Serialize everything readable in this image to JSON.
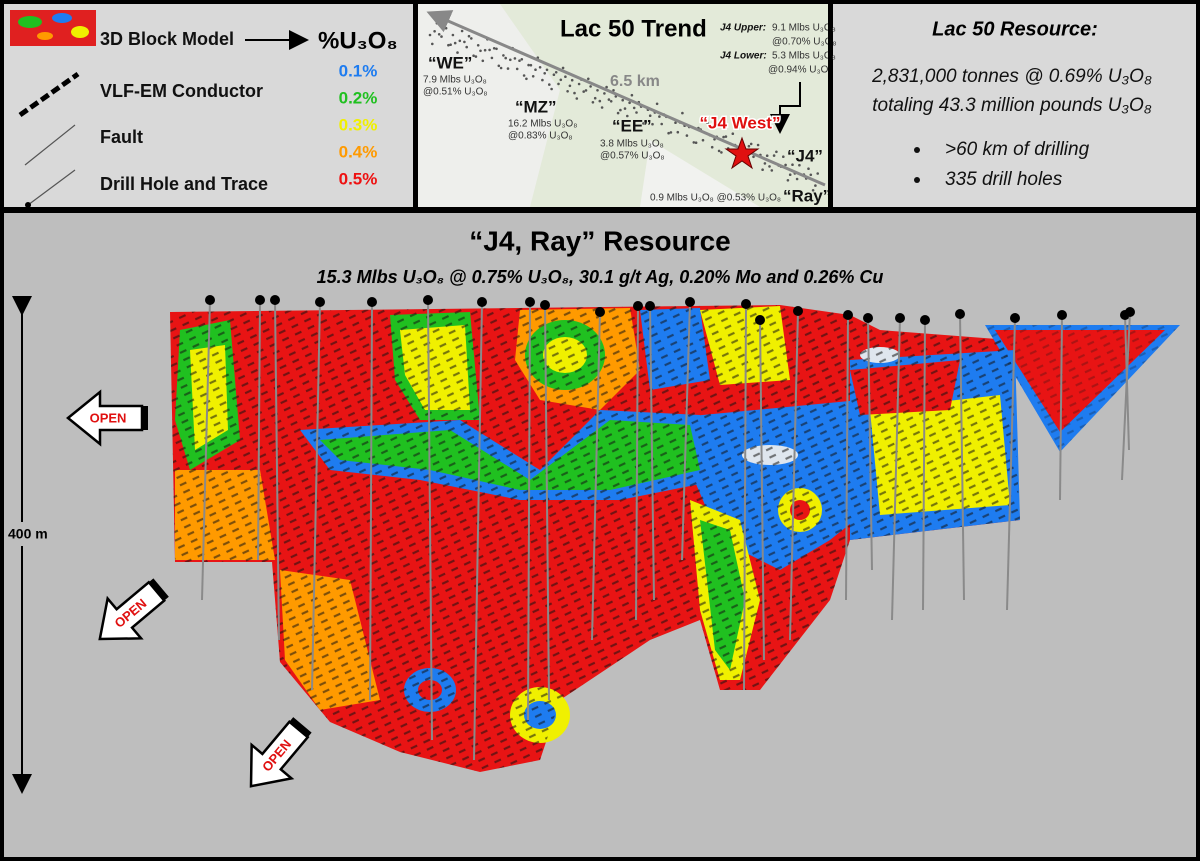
{
  "legend": {
    "block_model": "3D Block Model",
    "grade_header": "%U₃O₈",
    "conductor": "VLF-EM Conductor",
    "fault": "Fault",
    "drill_hole": "Drill Hole and Trace",
    "grades": [
      {
        "label": "0.1%",
        "color": "#1e7cf0"
      },
      {
        "label": "0.2%",
        "color": "#20c020"
      },
      {
        "label": "0.3%",
        "color": "#f0f000"
      },
      {
        "label": "0.4%",
        "color": "#ff9a00"
      },
      {
        "label": "0.5%",
        "color": "#ee1111"
      }
    ]
  },
  "map": {
    "title": "Lac 50 Trend",
    "distance": "6.5 km",
    "we": {
      "name": "“WE”",
      "tonnage": "7.9 Mlbs U₃O₈",
      "grade": "@0.51% U₃O₈"
    },
    "mz": {
      "name": "“MZ”",
      "tonnage": "16.2 Mlbs U₃O₈",
      "grade": "@0.83% U₃O₈"
    },
    "ee": {
      "name": "“EE”",
      "tonnage": "3.8 Mlbs U₃O₈",
      "grade": "@0.57% U₃O₈"
    },
    "j4_upper": {
      "label": "J4 Upper:",
      "tonnage": "9.1 Mlbs U₃O₈",
      "grade": "@0.70% U₃O₈"
    },
    "j4_lower": {
      "label": "J4 Lower:",
      "tonnage": "5.3 Mlbs U₃O₈",
      "grade": "@0.94% U₃O₈"
    },
    "j4_west": "“J4 West”",
    "j4": "“J4”",
    "ray": {
      "name": "“Ray”",
      "text": "0.9 Mlbs U₃O₈ @0.53% U₃O₈"
    }
  },
  "resource": {
    "title": "Lac 50 Resource:",
    "line1": "2,831,000 tonnes @ 0.69% U₃O₈",
    "line2": "totaling 43.3 million pounds U₃O₈",
    "bullets": [
      ">60 km of drilling",
      "335 drill holes"
    ]
  },
  "section": {
    "title": "“J4, Ray” Resource",
    "subtitle": "15.3 Mlbs U₃O₈ @ 0.75% U₃O₈, 30.1 g/t Ag, 0.20% Mo and 0.26% Cu",
    "scale": "400 m",
    "open_labels": [
      "OPEN",
      "OPEN",
      "OPEN"
    ]
  }
}
